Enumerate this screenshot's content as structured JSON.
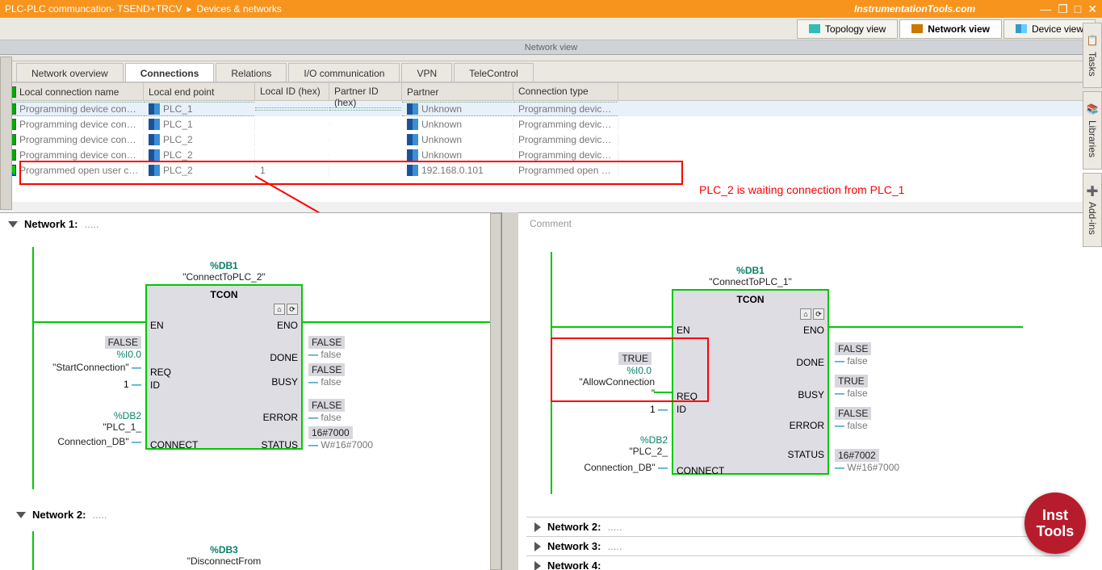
{
  "titlebar": {
    "breadcrumb1": "PLC-PLC communcation- TSEND+TRCV",
    "sep": "▸",
    "breadcrumb2": "Devices & networks",
    "watermark": "InstrumentationTools.com"
  },
  "viewbar": {
    "topology": "Topology view",
    "network": "Network view",
    "device": "Device view"
  },
  "nv_header": "Network view",
  "subtabs": {
    "overview": "Network overview",
    "connections": "Connections",
    "relations": "Relations",
    "io": "I/O communication",
    "vpn": "VPN",
    "tele": "TeleControl"
  },
  "table": {
    "head": {
      "c1": "Local connection name",
      "c2": "Local end point",
      "c3": "Local ID (hex)",
      "c4": "Partner ID (hex)",
      "c5": "Partner",
      "c6": "Connection type"
    },
    "rows": [
      {
        "name": "Programming device con…",
        "ep": "PLC_1",
        "id": "",
        "pid": "",
        "partner": "Unknown",
        "ctype": "Programming device …",
        "sel": true,
        "ico": "prog"
      },
      {
        "name": "Programming device con…",
        "ep": "PLC_1",
        "id": "",
        "pid": "",
        "partner": "Unknown",
        "ctype": "Programming device …",
        "ico": "prog"
      },
      {
        "name": "Programming device con…",
        "ep": "PLC_2",
        "id": "",
        "pid": "",
        "partner": "Unknown",
        "ctype": "Programming device …",
        "ico": "prog"
      },
      {
        "name": "Programming device con…",
        "ep": "PLC_2",
        "id": "",
        "pid": "",
        "partner": "Unknown",
        "ctype": "Programming device …",
        "ico": "prog"
      },
      {
        "name": "Programmed open user c…",
        "ep": "PLC_2",
        "id": "1",
        "pid": "",
        "partner": "192.168.0.101",
        "ctype": "Programmed open u…",
        "ico": "open"
      }
    ]
  },
  "annot": "PLC_2 is waiting connection from PLC_1",
  "left_pane": {
    "net1": "Network 1:",
    "net2": "Network 2:",
    "block1": {
      "db": "%DB1",
      "dbname": "\"ConnectToPLC_2\"",
      "title": "TCON",
      "en": "EN",
      "eno": "ENO",
      "req": "REQ",
      "id": "ID",
      "connect": "CONNECT",
      "done": "DONE",
      "busy": "BUSY",
      "error": "ERROR",
      "status": "STATUS",
      "req_tag": "FALSE",
      "req_addr": "%I0.0",
      "req_name": "\"StartConnection\"",
      "id_val": "1",
      "conn_db": "%DB2",
      "conn_name1": "\"PLC_1_",
      "conn_name2": "Connection_DB\"",
      "done_tag": "FALSE",
      "done_val": "false",
      "busy_tag": "FALSE",
      "busy_val": "false",
      "error_tag": "FALSE",
      "error_val": "false",
      "status_tag": "16#7000",
      "status_val": "W#16#7000"
    },
    "block2": {
      "db": "%DB3",
      "dbname": "\"DisconnectFrom"
    }
  },
  "right_pane": {
    "comment": "Comment",
    "block1": {
      "db": "%DB1",
      "dbname": "\"ConnectToPLC_1\"",
      "title": "TCON",
      "en": "EN",
      "eno": "ENO",
      "req": "REQ",
      "id": "ID",
      "connect": "CONNECT",
      "done": "DONE",
      "busy": "BUSY",
      "error": "ERROR",
      "status": "STATUS",
      "req_tag": "TRUE",
      "req_addr": "%I0.0",
      "req_name1": "\"AllowConnection",
      "req_name2": "\"",
      "id_val": "1",
      "conn_db": "%DB2",
      "conn_name1": "\"PLC_2_",
      "conn_name2": "Connection_DB\"",
      "done_tag": "FALSE",
      "done_val": "false",
      "busy_tag": "TRUE",
      "busy_val": "false",
      "error_tag": "FALSE",
      "error_val": "false",
      "status_tag": "16#7002",
      "status_val": "W#16#7000"
    },
    "net2": "Network 2:",
    "net3": "Network 3:",
    "net4": "Network 4:"
  },
  "sidetabs": {
    "tasks": "Tasks",
    "libraries": "Libraries",
    "addins": "Add-ins"
  },
  "badge": {
    "l1": "Inst",
    "l2": "Tools"
  }
}
